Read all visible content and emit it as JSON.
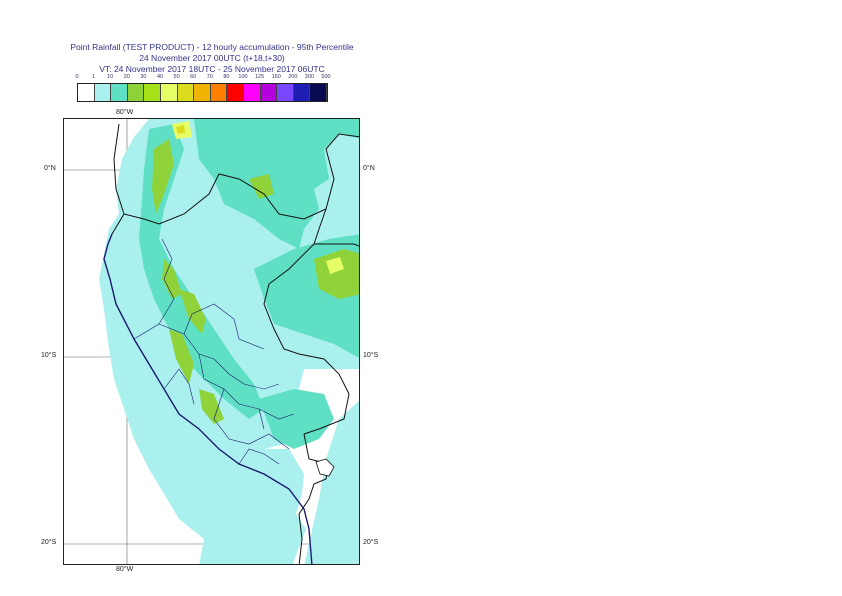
{
  "title": {
    "line1": "Point Rainfall (TEST PRODUCT) - 12 hourly accumulation - 95th Percentile",
    "line2": "24 November 2017 00UTC (t+18,t+30)",
    "line3": "VT: 24 November 2017 18UTC - 25 November 2017 06UTC"
  },
  "legend": {
    "labels": [
      "0",
      "1",
      "10",
      "20",
      "30",
      "40",
      "50",
      "60",
      "70",
      "80",
      "100",
      "125",
      "150",
      "200",
      "300",
      "500"
    ],
    "colors": [
      "#ffffff",
      "#aaf0ee",
      "#5fe0c4",
      "#8fd23a",
      "#a6e21a",
      "#e6ff66",
      "#dcdc1e",
      "#f0b400",
      "#ff7f00",
      "#ff0000",
      "#ff00ff",
      "#b400dc",
      "#7a46ff",
      "#1e1eb4",
      "#0a0a50"
    ]
  },
  "axes": {
    "lon_top": "80°W",
    "lon_bottom": "80°W",
    "lat_right_1": "0°N",
    "lat_left_1": "0°N",
    "lat_right_2": "10°S",
    "lat_left_2": "10°S",
    "lat_right_3": "20°S",
    "lat_left_3": "20°S"
  }
}
